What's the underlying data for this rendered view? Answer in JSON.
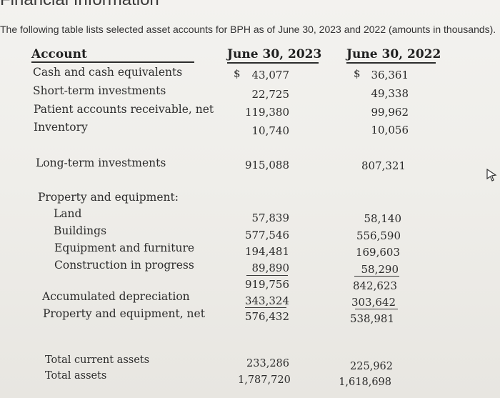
{
  "header": {
    "title": "Financial Information"
  },
  "intro": "The following table lists selected asset accounts for BPH as of June 30, 2023 and 2022 (amounts in thousands).",
  "table": {
    "col_account": "Account",
    "col_2023": "June 30, 2023",
    "col_2022": "June 30, 2022",
    "currency": "$",
    "rows": {
      "cash": {
        "label": "Cash and cash equivalents",
        "v2023": "43,077",
        "v2022": "36,361"
      },
      "st_inv": {
        "label": "Short-term investments",
        "v2023": "22,725",
        "v2022": "49,338"
      },
      "patient_ar": {
        "label": "Patient accounts receivable, net",
        "v2023": "119,380",
        "v2022": "99,962"
      },
      "inventory": {
        "label": "Inventory",
        "v2023": "10,740",
        "v2022": "10,056"
      },
      "lt_inv": {
        "label": "Long-term investments",
        "v2023": "915,088",
        "v2022": "807,321"
      },
      "pe_heading": {
        "label": "Property and equipment:"
      },
      "land": {
        "label": "Land",
        "v2023": "57,839",
        "v2022": "58,140"
      },
      "buildings": {
        "label": "Buildings",
        "v2023": "577,546",
        "v2022": "556,590"
      },
      "equipment": {
        "label": "Equipment and furniture",
        "v2023": "194,481",
        "v2022": "169,603"
      },
      "construction": {
        "label": "Construction in progress",
        "v2023": "89,890",
        "v2022": "58,290"
      },
      "pe_subtotal": {
        "v2023": "919,756",
        "v2022": "842,623"
      },
      "accum_dep": {
        "label": "Accumulated depreciation",
        "v2023": "343,324",
        "v2022": "303,642"
      },
      "pe_net": {
        "label": "Property and equipment, net",
        "v2023": "576,432",
        "v2022": "538,981"
      },
      "total_current": {
        "label": "Total current assets",
        "v2023": "233,286",
        "v2022": "225,962"
      },
      "total_assets": {
        "label": "Total assets",
        "v2023": "1,787,720",
        "v2022": "1,618,698"
      }
    }
  }
}
